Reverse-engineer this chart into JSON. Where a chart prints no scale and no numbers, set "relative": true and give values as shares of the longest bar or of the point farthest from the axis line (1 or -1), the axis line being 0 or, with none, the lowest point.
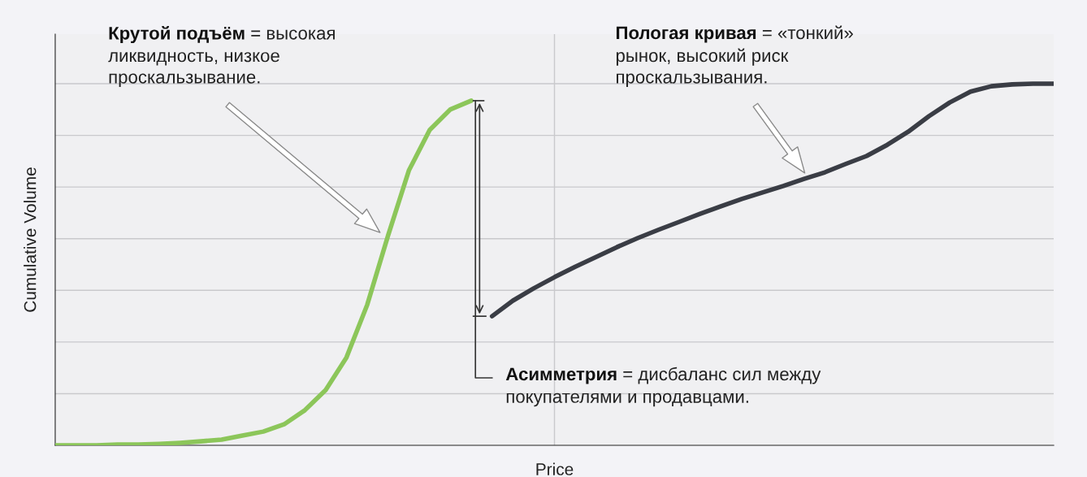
{
  "chart_data": {
    "type": "line",
    "relative": true,
    "xlabel": "Price",
    "ylabel": "Cumulative Volume",
    "categories": [
      null,
      null,
      null,
      null,
      null,
      null,
      null,
      null,
      null,
      null,
      null,
      null,
      null,
      null,
      null,
      null,
      null,
      null,
      null,
      null,
      null,
      null,
      null,
      null,
      null,
      null,
      null,
      null,
      null,
      null,
      null,
      null,
      null,
      null,
      null,
      null,
      null,
      null,
      null,
      null,
      null,
      null,
      null,
      null,
      null,
      null,
      null,
      null,
      null
    ],
    "series": [
      {
        "color": "#8cc65a",
        "values": [
          0,
          0,
          0,
          0.002,
          0.002,
          0.004,
          0.007,
          0.011,
          0.016,
          0.027,
          0.038,
          0.058,
          0.097,
          0.153,
          0.243,
          0.389,
          0.58,
          0.76,
          0.872,
          0.929,
          0.953,
          null,
          null,
          null,
          null,
          null,
          null,
          null,
          null,
          null,
          null,
          null,
          null,
          null,
          null,
          null,
          null,
          null,
          null,
          null,
          null,
          null,
          null,
          null,
          null,
          null,
          null,
          null,
          null
        ]
      },
      {
        "color": "#3a3d45",
        "values": [
          null,
          null,
          null,
          null,
          null,
          null,
          null,
          null,
          null,
          null,
          null,
          null,
          null,
          null,
          null,
          null,
          null,
          null,
          null,
          null,
          null,
          0.357,
          0.4,
          0.434,
          0.465,
          0.494,
          0.521,
          0.548,
          0.573,
          0.596,
          0.618,
          0.64,
          0.661,
          0.681,
          0.699,
          0.717,
          0.737,
          0.755,
          0.778,
          0.8,
          0.831,
          0.867,
          0.91,
          0.948,
          0.978,
          0.993,
          0.998,
          1,
          1
        ]
      }
    ],
    "annotations": [
      "Крутой подъём = высокая\nликвидность, низкое\nпроскальзывание.",
      "Пологая кривая = «тонкий»\nрынок, высокий риск\nпроскальзывания.",
      "Асимметрия = дисбаланс сил между\nпокупателями и продавцами."
    ],
    "grid": true,
    "marker": "none",
    "line_style": "solid"
  }
}
